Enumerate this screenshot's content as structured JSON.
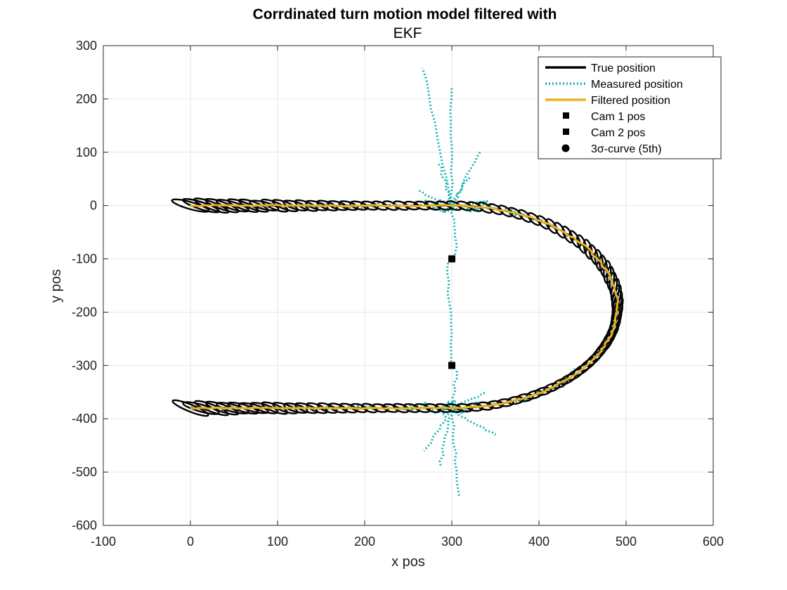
{
  "chart_data": {
    "type": "line",
    "title": "Corrdinated turn motion model filtered with",
    "subtitle": "EKF",
    "xlabel": "x pos",
    "ylabel": "y pos",
    "xlim": [
      -100,
      600
    ],
    "ylim": [
      -600,
      300
    ],
    "xticks": [
      -100,
      0,
      100,
      200,
      300,
      400,
      500,
      600
    ],
    "yticks": [
      300,
      200,
      100,
      0,
      -100,
      -200,
      -300,
      -400,
      -500,
      -600
    ],
    "grid": true,
    "legend_position": "top-right",
    "legend": [
      {
        "label": "True position",
        "style": "line",
        "color": "#000000"
      },
      {
        "label": "Measured position",
        "style": "dotted",
        "color": "#12b3b3"
      },
      {
        "label": "Filtered position",
        "style": "line",
        "color": "#edb120"
      },
      {
        "label": "Cam 1 pos",
        "style": "square",
        "color": "#000000"
      },
      {
        "label": "Cam 2 pos",
        "style": "square",
        "color": "#000000"
      },
      {
        "label": "3σ-curve (5th)",
        "style": "circle",
        "color": "#000000"
      }
    ],
    "cameras": [
      {
        "name": "Cam 1 pos",
        "x": 300,
        "y": -100
      },
      {
        "name": "Cam 2 pos",
        "x": 300,
        "y": -300
      }
    ],
    "series": [
      {
        "name": "True position",
        "color": "#000000",
        "x": [
          0,
          100,
          200,
          300,
          400,
          440,
          470,
          488,
          490,
          488,
          470,
          440,
          400,
          340,
          300,
          200,
          100,
          0
        ],
        "y": [
          0,
          0,
          0,
          0,
          -20,
          -60,
          -110,
          -160,
          -200,
          -250,
          -300,
          -340,
          -365,
          -380,
          -380,
          -385,
          -385,
          -385
        ]
      },
      {
        "name": "Filtered position",
        "color": "#edb120",
        "x": [
          5,
          100,
          200,
          300,
          400,
          440,
          470,
          488,
          490,
          488,
          470,
          440,
          400,
          340,
          300,
          200,
          100,
          5
        ],
        "y": [
          0,
          0,
          0,
          0,
          -20,
          -60,
          -110,
          -160,
          -200,
          -250,
          -300,
          -340,
          -365,
          -380,
          -380,
          -385,
          -385,
          -385
        ]
      },
      {
        "name": "Measured position",
        "color": "#12b3b3",
        "x": [
          -20,
          0,
          30,
          60,
          100,
          150,
          200,
          250,
          280,
          268,
          300,
          333,
          300,
          300,
          300,
          300,
          300,
          300,
          286,
          308,
          350,
          400,
          450,
          480,
          490,
          480,
          450,
          400,
          350,
          300,
          250,
          200,
          150,
          100,
          50,
          0,
          -20
        ],
        "y": [
          25,
          10,
          -5,
          15,
          -8,
          12,
          -5,
          5,
          0,
          258,
          223,
          102,
          -60,
          -160,
          -240,
          -320,
          -420,
          -480,
          -490,
          -548,
          -430,
          -380,
          -340,
          -280,
          -190,
          -140,
          -80,
          -10,
          5,
          -10,
          -405,
          -375,
          -395,
          -380,
          -402,
          -390,
          -400
        ]
      }
    ],
    "covariance_ellipses": {
      "label": "3σ-curve (5th)",
      "color": "#000000",
      "count": 100,
      "note_centers": "along true path"
    }
  }
}
